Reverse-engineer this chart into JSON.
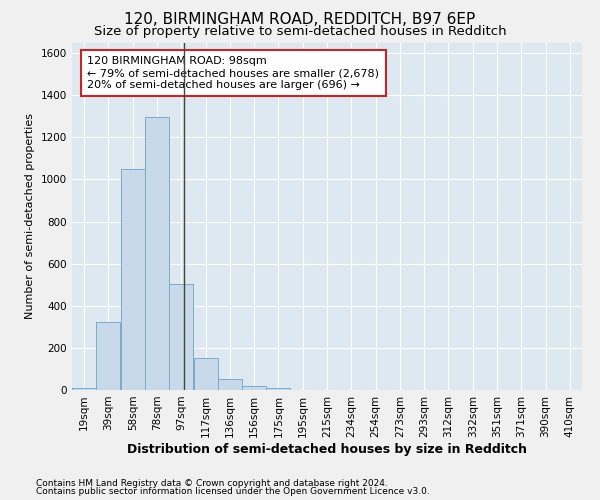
{
  "title": "120, BIRMINGHAM ROAD, REDDITCH, B97 6EP",
  "subtitle": "Size of property relative to semi-detached houses in Redditch",
  "xlabel": "Distribution of semi-detached houses by size in Redditch",
  "ylabel": "Number of semi-detached properties",
  "footnote1": "Contains HM Land Registry data © Crown copyright and database right 2024.",
  "footnote2": "Contains public sector information licensed under the Open Government Licence v3.0.",
  "annotation_title": "120 BIRMINGHAM ROAD: 98sqm",
  "annotation_line2": "← 79% of semi-detached houses are smaller (2,678)",
  "annotation_line3": "20% of semi-detached houses are larger (696) →",
  "categories": [
    "19sqm",
    "39sqm",
    "58sqm",
    "78sqm",
    "97sqm",
    "117sqm",
    "136sqm",
    "156sqm",
    "175sqm",
    "195sqm",
    "215sqm",
    "234sqm",
    "254sqm",
    "273sqm",
    "293sqm",
    "312sqm",
    "332sqm",
    "351sqm",
    "371sqm",
    "390sqm",
    "410sqm"
  ],
  "bin_edges": [
    9.5,
    28.5,
    47.5,
    66.5,
    85.5,
    104.5,
    123.5,
    142.5,
    161.5,
    180.5,
    199.5,
    218.5,
    237.5,
    256.5,
    275.5,
    294.5,
    313.5,
    332.5,
    351.5,
    370.5,
    389.5,
    408.5
  ],
  "values": [
    10,
    325,
    1050,
    1295,
    505,
    150,
    50,
    20,
    10,
    0,
    0,
    0,
    0,
    0,
    0,
    0,
    0,
    0,
    0,
    0,
    0
  ],
  "bar_color": "#c8d9ea",
  "bar_edge_color": "#7aaaca",
  "property_line_x": 97,
  "ylim": [
    0,
    1650
  ],
  "yticks": [
    0,
    200,
    400,
    600,
    800,
    1000,
    1200,
    1400,
    1600
  ],
  "bg_color": "#dde8f0",
  "grid_color": "#ffffff",
  "annotation_box_facecolor": "#ffffff",
  "annotation_box_edgecolor": "#cc2222",
  "fig_facecolor": "#f0f0f0",
  "title_fontsize": 11,
  "subtitle_fontsize": 9.5,
  "xlabel_fontsize": 9,
  "ylabel_fontsize": 8,
  "tick_fontsize": 7.5,
  "annotation_fontsize": 8,
  "footnote_fontsize": 6.5
}
